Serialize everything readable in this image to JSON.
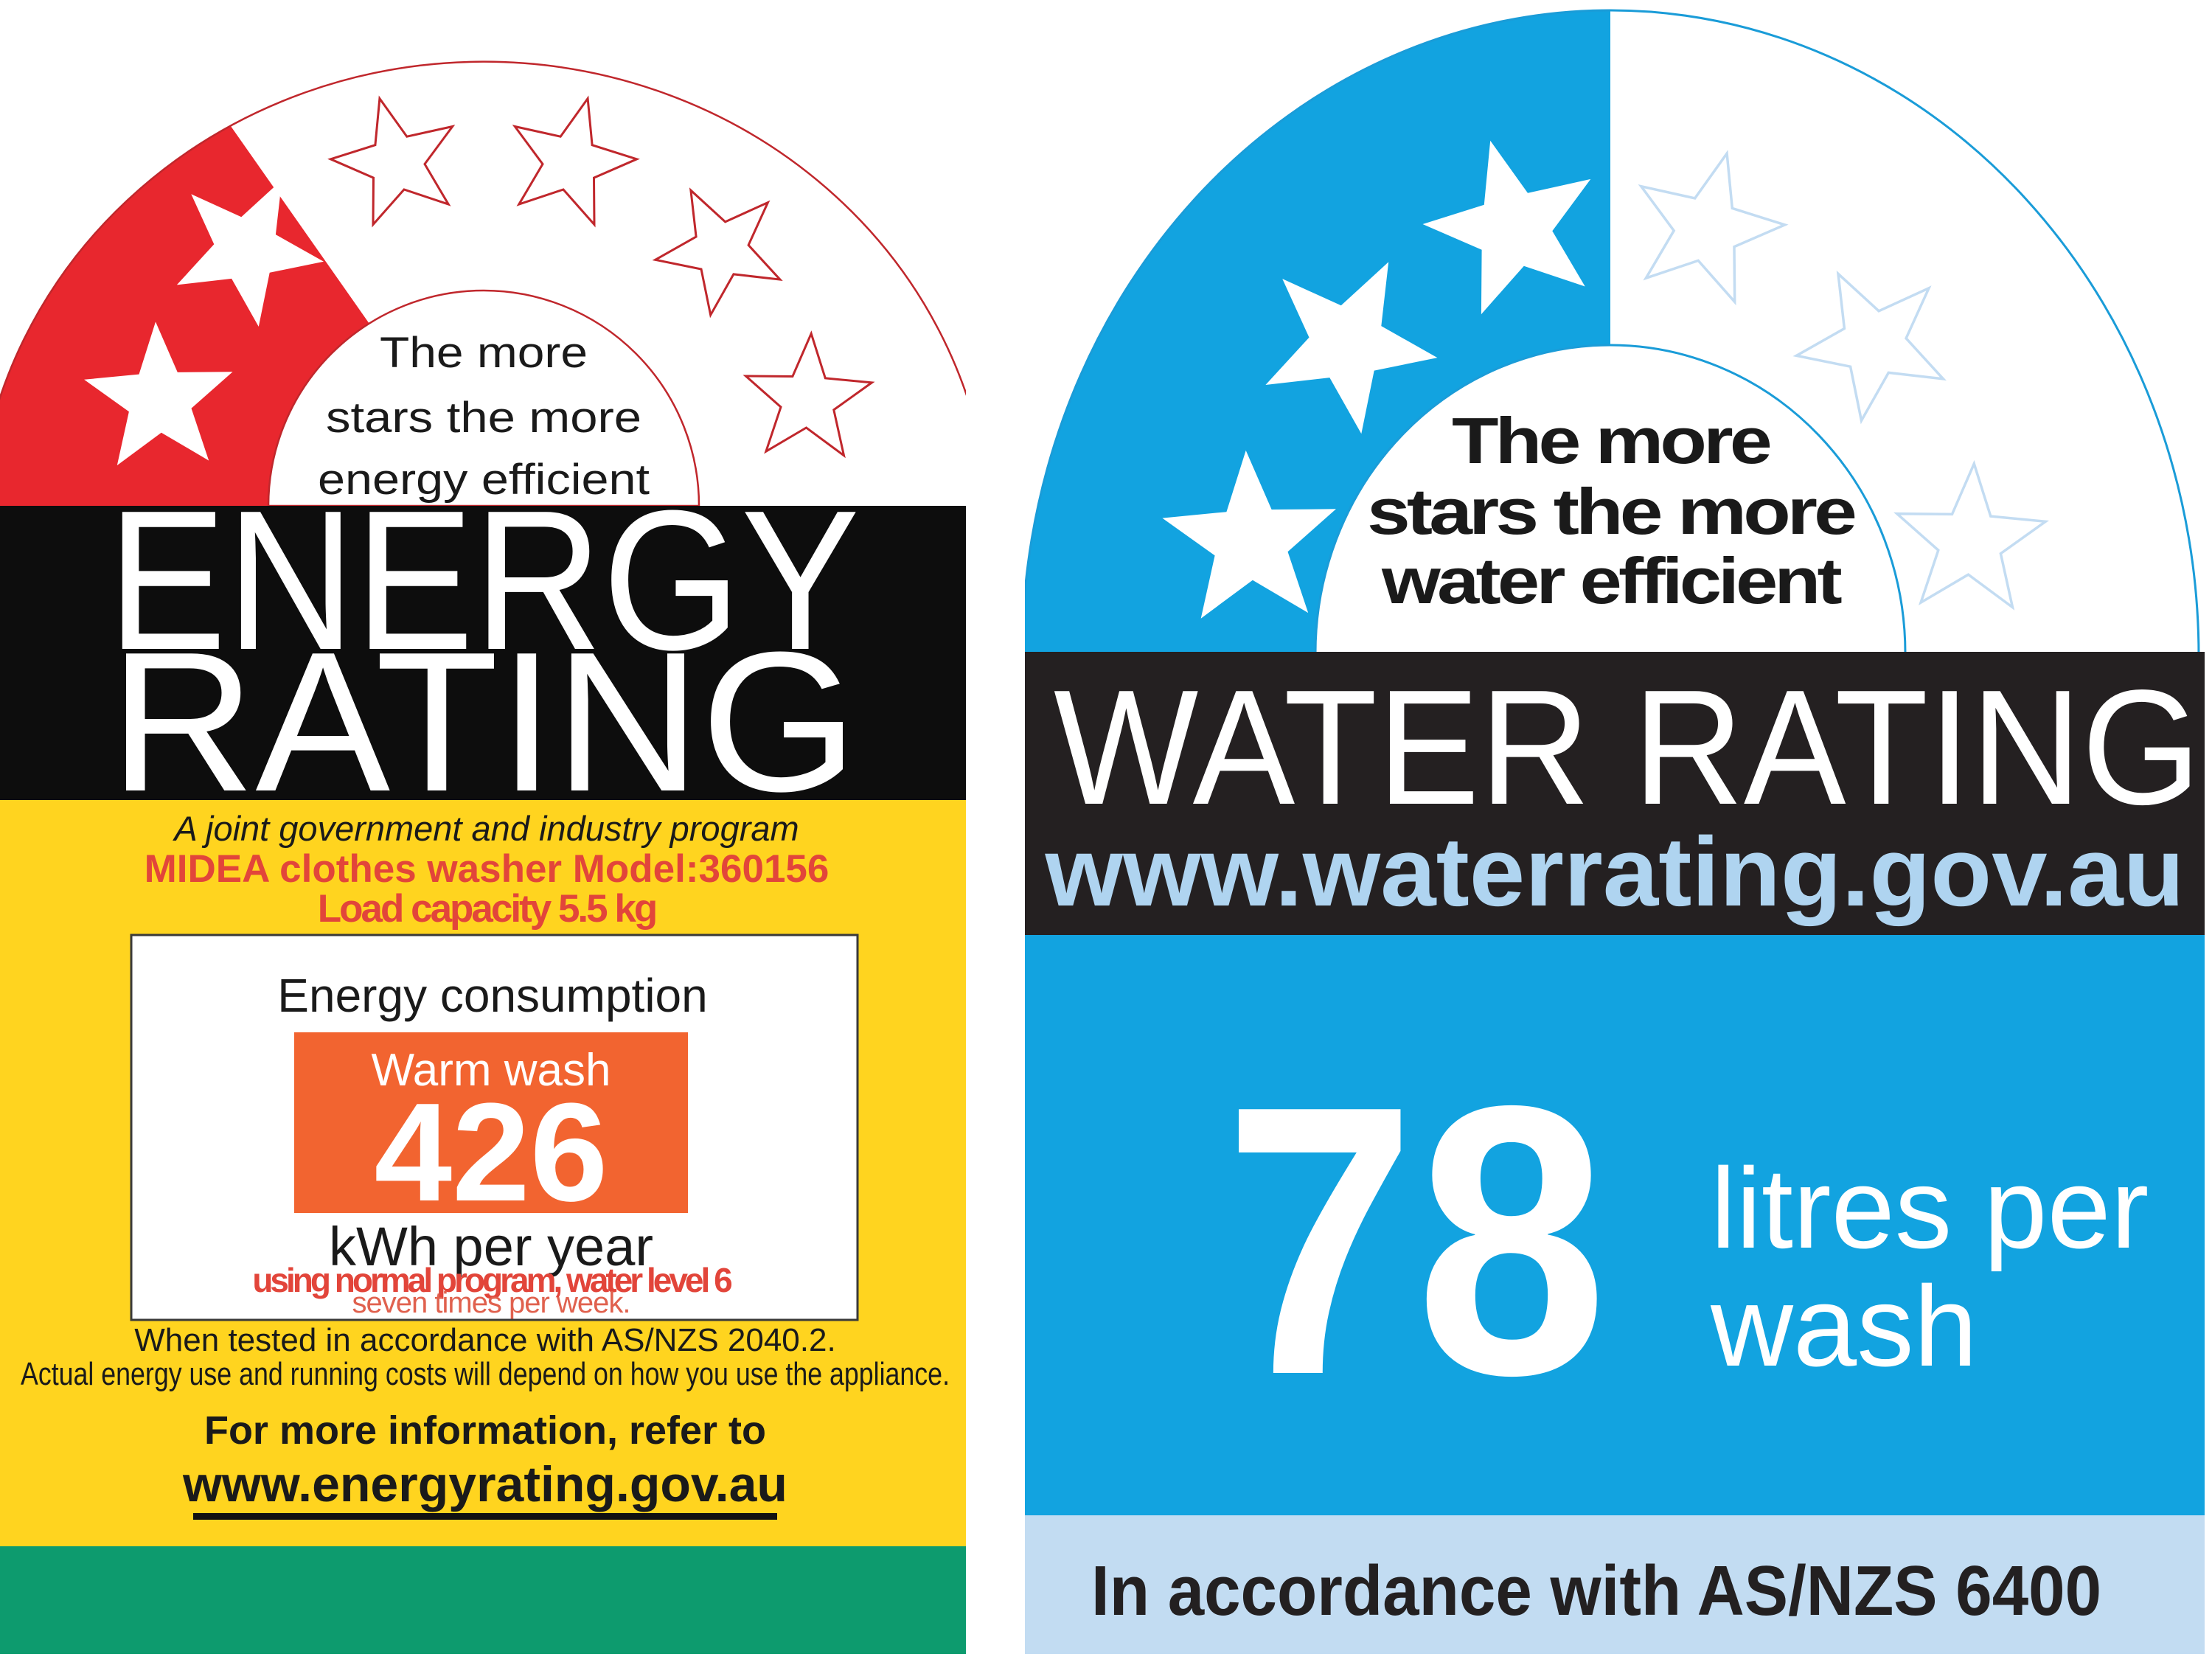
{
  "energy_label": {
    "tagline": [
      "The more",
      "stars the more",
      "energy efficient"
    ],
    "title": [
      "ENERGY",
      "RATING"
    ],
    "program_line": "A joint government and industry program",
    "model_line": "MIDEA clothes washer Model:360156",
    "capacity_line": "Load capacity 5.5 kg",
    "consumption": {
      "heading": "Energy consumption",
      "mode": "Warm wash",
      "value": "426",
      "unit": "kWh per year",
      "note1": "using normal program, water level 6",
      "note2": "seven times per week."
    },
    "footnote1": "When tested in accordance with AS/NZS 2040.2.",
    "footnote2": "Actual energy use and running costs will depend on how you use the appliance.",
    "more_info": "For more information, refer to",
    "url": "www.energyrating.gov.au",
    "stars": {
      "rating": 2,
      "total": 6
    },
    "colors": {
      "red": "#E8272E",
      "red_dark": "#C0272C",
      "text_red": "#E2453A",
      "note_salmon": "#E0614E",
      "yellow": "#FFD41F",
      "orange": "#F26430",
      "green": "#0D9B6E",
      "black": "#0D0D0D"
    }
  },
  "water_label": {
    "tagline": [
      "The more",
      "stars the more",
      "water efficient"
    ],
    "title": "WATER RATING",
    "url": "www.waterrating.gov.au",
    "value": "78",
    "unit": [
      "litres per",
      "wash"
    ],
    "compliance": "In accordance with AS/NZS 6400",
    "stars": {
      "rating": 3,
      "total": 6
    },
    "colors": {
      "blue": "#12A3E0",
      "blue_stroke": "#1A9CD8",
      "black": "#242021",
      "url_blue": "#AFD4F0",
      "star_outline": "#C3DCF2",
      "band": "#C2DCF2",
      "text_dark": "#232021"
    }
  }
}
